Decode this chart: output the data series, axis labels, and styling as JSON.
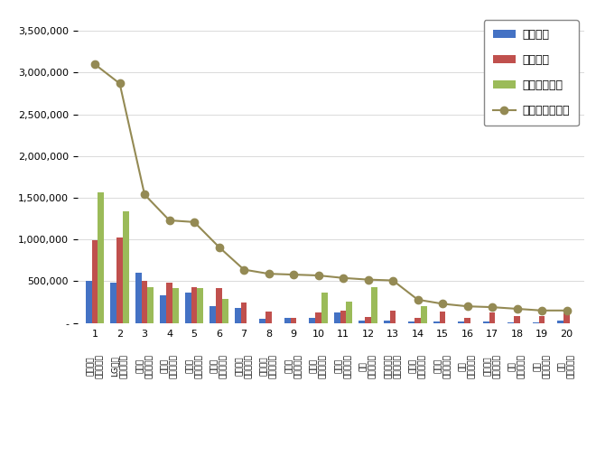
{
  "categories": [
    "삼성전자\n공기청정기",
    "LG전자\n공기청정기",
    "다이싨\n공기청정기",
    "샷오미\n공기청정기",
    "위닉스\n공기청정기",
    "코웨이\n공기청정기",
    "쿠쿠전자\n공기청정기",
    "블루에어\n공기청정기",
    "쓸매직\n공기청정기",
    "캐리어\n공기청정기",
    "발뮤다\n공기청정기",
    "샷프\n공기청정기",
    "청호나이스\n공기청정기",
    "세스코\n공기청정기",
    "클레어\n공기청정기",
    "웹스\n공기청정기",
    "에어비타\n공기청정기",
    "벤타\n공기청정기",
    "신일\n공기청정기",
    "카도\n공기청정기"
  ],
  "x_labels": [
    "1",
    "2",
    "3",
    "4",
    "5",
    "6",
    "7",
    "8",
    "9",
    "10",
    "11",
    "12",
    "13",
    "14",
    "15",
    "16",
    "17",
    "18",
    "19",
    "20"
  ],
  "participation": [
    510000,
    480000,
    600000,
    330000,
    360000,
    200000,
    180000,
    50000,
    60000,
    60000,
    130000,
    30000,
    30000,
    20000,
    15000,
    15000,
    20000,
    10000,
    10000,
    30000
  ],
  "communication": [
    990000,
    1030000,
    510000,
    480000,
    430000,
    420000,
    250000,
    140000,
    60000,
    130000,
    150000,
    70000,
    150000,
    60000,
    140000,
    60000,
    130000,
    80000,
    80000,
    120000
  ],
  "community": [
    1570000,
    1340000,
    430000,
    420000,
    420000,
    290000,
    0,
    0,
    0,
    360000,
    260000,
    430000,
    0,
    200000,
    0,
    0,
    0,
    0,
    0,
    0
  ],
  "brand_reputation": [
    3100000,
    2870000,
    1540000,
    1230000,
    1210000,
    910000,
    640000,
    590000,
    580000,
    570000,
    540000,
    520000,
    510000,
    280000,
    230000,
    200000,
    190000,
    170000,
    150000,
    150000
  ],
  "bar_colors": {
    "participation": "#4472C4",
    "communication": "#C0504D",
    "community": "#9BBB59",
    "brand_reputation": "#948A54"
  },
  "ylim": [
    0,
    3700000
  ],
  "yticks": [
    0,
    500000,
    1000000,
    1500000,
    2000000,
    2500000,
    3000000,
    3500000
  ],
  "legend_labels": [
    "참여지수",
    "소통지수",
    "커뮤니티지수",
    "브랜드평판지수"
  ],
  "background_color": "#ffffff",
  "grid_color": "#cccccc"
}
